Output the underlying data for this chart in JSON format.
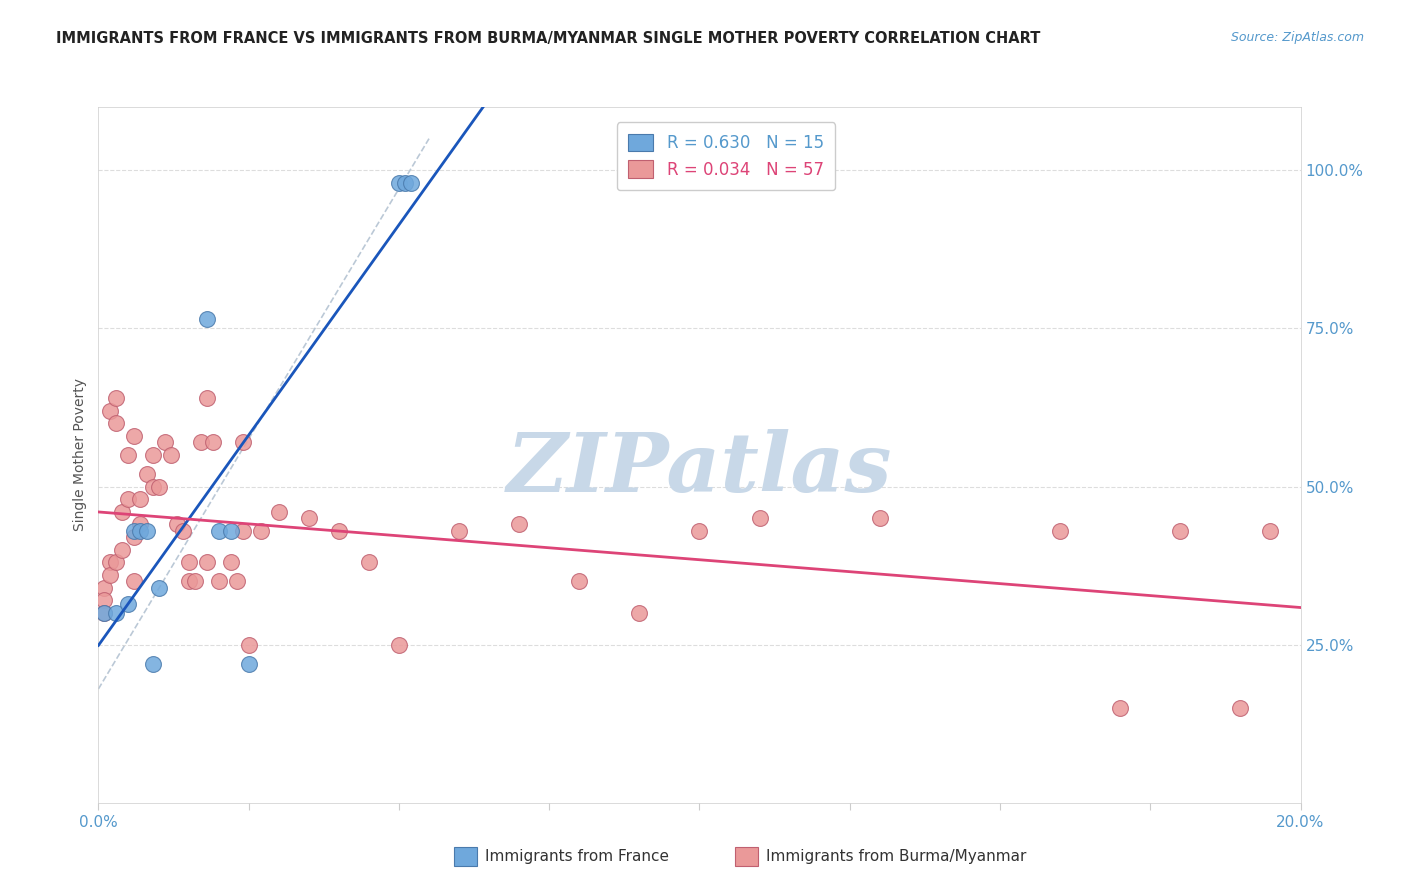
{
  "title": "IMMIGRANTS FROM FRANCE VS IMMIGRANTS FROM BURMA/MYANMAR SINGLE MOTHER POVERTY CORRELATION CHART",
  "source": "Source: ZipAtlas.com",
  "ylabel": "Single Mother Poverty",
  "right_ytick_vals": [
    1.0,
    0.75,
    0.5,
    0.25
  ],
  "right_ytick_labels": [
    "100.0%",
    "75.0%",
    "50.0%",
    "25.0%"
  ],
  "xlim": [
    0.0,
    0.2
  ],
  "ylim": [
    0.0,
    1.1
  ],
  "france_color": "#6fa8dc",
  "france_edge_color": "#4a7aac",
  "burma_color": "#ea9999",
  "burma_edge_color": "#c06070",
  "france_line_color": "#1a56bb",
  "burma_line_color": "#dd4477",
  "dash_line_color": "#aabbcc",
  "legend_label_france": "R = 0.630   N = 15",
  "legend_label_burma": "R = 0.034   N = 57",
  "bottom_legend_france": "Immigrants from France",
  "bottom_legend_burma": "Immigrants from Burma/Myanmar",
  "watermark": "ZIPatlas",
  "watermark_color": "#c8d8e8",
  "watermark_fontsize": 60,
  "france_scatter_x": [
    0.001,
    0.003,
    0.005,
    0.006,
    0.007,
    0.008,
    0.009,
    0.01,
    0.018,
    0.02,
    0.022,
    0.025,
    0.05,
    0.051,
    0.052
  ],
  "france_scatter_y": [
    0.3,
    0.3,
    0.315,
    0.43,
    0.43,
    0.43,
    0.22,
    0.34,
    0.765,
    0.43,
    0.43,
    0.22,
    0.98,
    0.98,
    0.98
  ],
  "burma_scatter_x": [
    0.001,
    0.001,
    0.001,
    0.002,
    0.002,
    0.002,
    0.003,
    0.003,
    0.003,
    0.004,
    0.004,
    0.005,
    0.005,
    0.006,
    0.006,
    0.006,
    0.007,
    0.007,
    0.008,
    0.009,
    0.009,
    0.01,
    0.011,
    0.012,
    0.013,
    0.014,
    0.015,
    0.015,
    0.016,
    0.017,
    0.018,
    0.018,
    0.019,
    0.02,
    0.022,
    0.023,
    0.024,
    0.024,
    0.025,
    0.027,
    0.03,
    0.035,
    0.04,
    0.045,
    0.05,
    0.06,
    0.07,
    0.08,
    0.09,
    0.1,
    0.11,
    0.13,
    0.16,
    0.17,
    0.18,
    0.19,
    0.195
  ],
  "burma_scatter_y": [
    0.34,
    0.32,
    0.3,
    0.62,
    0.38,
    0.36,
    0.64,
    0.6,
    0.38,
    0.46,
    0.4,
    0.55,
    0.48,
    0.35,
    0.58,
    0.42,
    0.44,
    0.48,
    0.52,
    0.55,
    0.5,
    0.5,
    0.57,
    0.55,
    0.44,
    0.43,
    0.38,
    0.35,
    0.35,
    0.57,
    0.38,
    0.64,
    0.57,
    0.35,
    0.38,
    0.35,
    0.43,
    0.57,
    0.25,
    0.43,
    0.46,
    0.45,
    0.43,
    0.38,
    0.25,
    0.43,
    0.44,
    0.35,
    0.3,
    0.43,
    0.45,
    0.45,
    0.43,
    0.15,
    0.43,
    0.15,
    0.43
  ]
}
